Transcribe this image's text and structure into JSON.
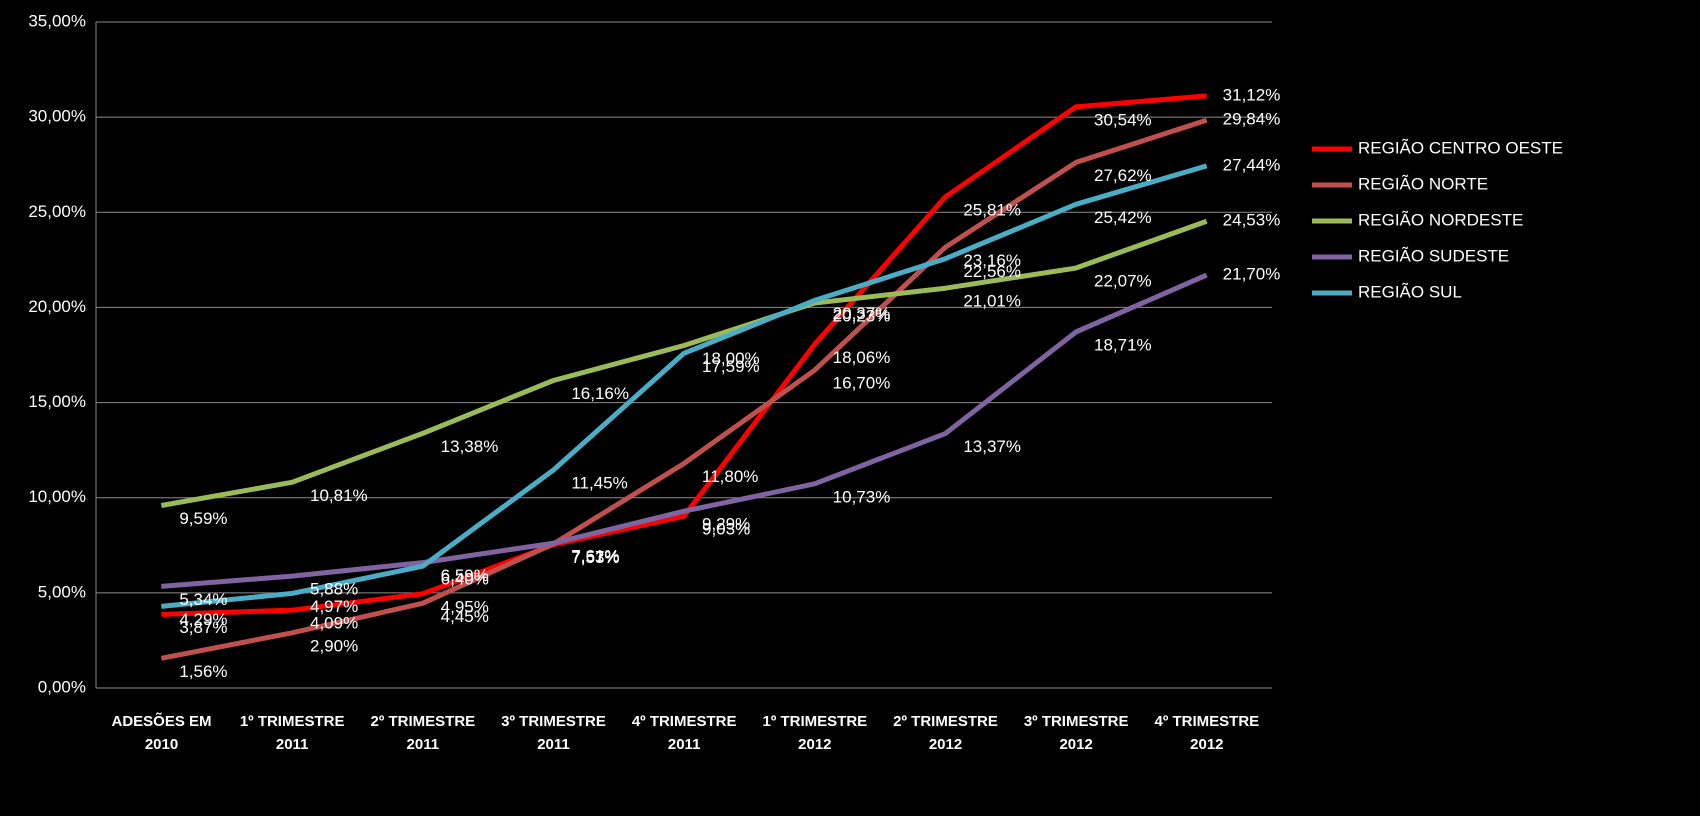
{
  "chart_data": {
    "type": "line",
    "categories": [
      "ADESÕES EM\n2010",
      "1º TRIMESTRE\n2011",
      "2º TRIMESTRE\n2011",
      "3º TRIMESTRE\n2011",
      "4º TRIMESTRE\n2011",
      "1º TRIMESTRE\n2012",
      "2º TRIMESTRE\n2012",
      "3º TRIMESTRE\n2012",
      "4º TRIMESTRE\n2012"
    ],
    "series": [
      {
        "name": "REGIÃO CENTRO OESTE",
        "color": "#ff0000",
        "label_color": "#ffff00",
        "values": [
          3.87,
          4.09,
          4.95,
          7.53,
          9.03,
          18.06,
          25.81,
          30.54,
          31.12
        ],
        "value_labels": [
          "3,87%",
          "4,09%",
          "4,95%",
          "7,53%",
          "9,03%",
          "18,06%",
          "25,81%",
          "30,54%",
          "31,12%"
        ]
      },
      {
        "name": "REGIÃO NORTE",
        "color": "#c0504d",
        "label_color": "#ffff00",
        "values": [
          1.56,
          2.9,
          4.45,
          7.57,
          11.8,
          16.7,
          23.16,
          27.62,
          29.84
        ],
        "value_labels": [
          "1,56%",
          "2,90%",
          "4,45%",
          "7,57%",
          "11,80%",
          "16,70%",
          "23,16%",
          "27,62%",
          "29,84%"
        ]
      },
      {
        "name": "REGIÃO NORDESTE",
        "color": "#9bbb59",
        "label_color": "#ffffff",
        "values": [
          9.59,
          10.81,
          13.38,
          16.16,
          18.0,
          20.23,
          21.01,
          22.07,
          24.53
        ],
        "value_labels": [
          "9,59%",
          "10,81%",
          "13,38%",
          "16,16%",
          "18,00%",
          "20,23%",
          "21,01%",
          "22,07%",
          "24,53%"
        ]
      },
      {
        "name": "REGIÃO SUDESTE",
        "color": "#8064a2",
        "label_color": "#ffffff",
        "values": [
          5.34,
          5.88,
          6.59,
          7.61,
          9.29,
          10.73,
          13.37,
          18.71,
          21.7
        ],
        "value_labels": [
          "5,34%",
          "5,88%",
          "6,59%",
          "7,61%",
          "9,29%",
          "10,73%",
          "13,37%",
          "18,71%",
          "21,70%"
        ]
      },
      {
        "name": "REGIÃO SUL",
        "color": "#4bacc6",
        "label_color": "#ffffff",
        "values": [
          4.29,
          4.97,
          6.4,
          11.45,
          17.59,
          20.37,
          22.56,
          25.42,
          27.44
        ],
        "value_labels": [
          "4,29%",
          "4,97%",
          "6,40%",
          "11,45%",
          "17,59%",
          "20,37%",
          "22,56%",
          "25,42%",
          "27,44%"
        ]
      }
    ],
    "ylim": [
      0,
      35
    ],
    "yticks": [
      {
        "value": 0,
        "label": "0,00%"
      },
      {
        "value": 5,
        "label": "5,00%"
      },
      {
        "value": 10,
        "label": "10,00%"
      },
      {
        "value": 15,
        "label": "15,00%"
      },
      {
        "value": 20,
        "label": "20,00%"
      },
      {
        "value": 25,
        "label": "25,00%"
      },
      {
        "value": 30,
        "label": "30,00%"
      },
      {
        "value": 35,
        "label": "35,00%"
      }
    ],
    "grid": true,
    "legend": "right"
  }
}
